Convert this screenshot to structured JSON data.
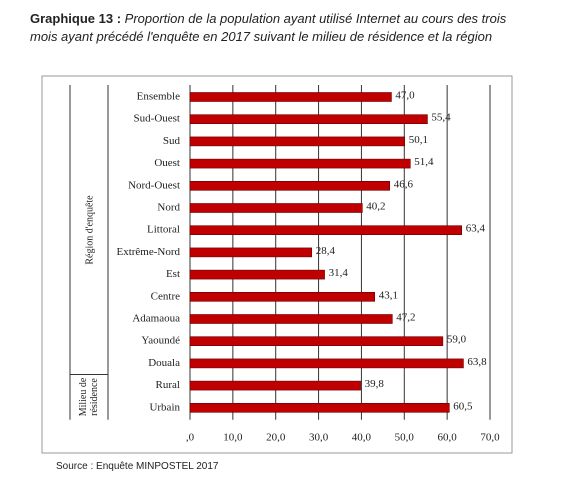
{
  "chart_data": {
    "type": "bar",
    "orientation": "horizontal",
    "title_prefix": "Graphique 13 :",
    "title": "Proportion de la population ayant utilisé Internet au cours des trois mois ayant précédé l'enquête en 2017 suivant le milieu de résidence et la région",
    "source": "Source : Enquête MINPOSTEL 2017",
    "color": "#c00000",
    "groups": [
      {
        "label": "Région d'enquête",
        "categories": [
          "Ensemble",
          "Sud-Ouest",
          "Sud",
          "Ouest",
          "Nord-Ouest",
          "Nord",
          "Littoral",
          "Extrême-Nord",
          "Est",
          "Centre",
          "Adamaoua",
          "Yaoundé",
          "Douala"
        ],
        "values": [
          47.0,
          55.4,
          50.1,
          51.4,
          46.6,
          40.2,
          63.4,
          28.4,
          31.4,
          43.1,
          47.2,
          59.0,
          63.8
        ],
        "value_labels": [
          "47,0",
          "55,4",
          "50,1",
          "51,4",
          "46,6",
          "40,2",
          "63,4",
          "28,4",
          "31,4",
          "43,1",
          "47,2",
          "59,0",
          "63,8"
        ]
      },
      {
        "label": "Milieu de résidence",
        "categories": [
          "Rural",
          "Urbain"
        ],
        "values": [
          39.8,
          60.5
        ],
        "value_labels": [
          "39,8",
          "60,5"
        ]
      }
    ],
    "xlim": [
      0,
      70
    ],
    "xticks": [
      {
        "value": 0,
        "label": ",0"
      },
      {
        "value": 10,
        "label": "10,0"
      },
      {
        "value": 20,
        "label": "20,0"
      },
      {
        "value": 30,
        "label": "30,0"
      },
      {
        "value": 40,
        "label": "40,0"
      },
      {
        "value": 50,
        "label": "50,0"
      },
      {
        "value": 60,
        "label": "60,0"
      },
      {
        "value": 70,
        "label": "70,0"
      }
    ],
    "grid": true
  }
}
